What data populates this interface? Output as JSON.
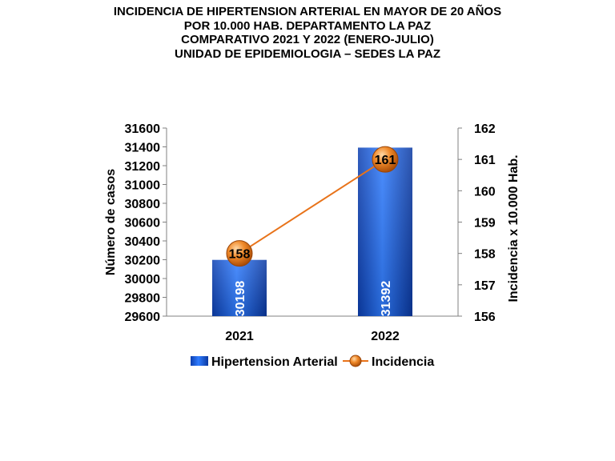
{
  "title_lines": [
    "INCIDENCIA DE HIPERTENSION ARTERIAL EN MAYOR DE 20 AÑOS",
    "POR 10.000 HAB. DEPARTAMENTO LA PAZ",
    "COMPARATIVO 2021 Y 2022 (ENERO-JULIO)",
    "UNIDAD DE EPIDEMIOLOGIA – SEDES LA PAZ"
  ],
  "chart_data": {
    "type": "bar",
    "categories": [
      "2021",
      "2022"
    ],
    "series": [
      {
        "name": "Hipertension Arterial",
        "type": "bar",
        "axis": "left",
        "values": [
          30198,
          31392
        ],
        "color": "#1f5fe0"
      },
      {
        "name": "Incidencia",
        "type": "line",
        "axis": "right",
        "values": [
          158,
          161
        ],
        "color": "#e8731a"
      }
    ],
    "ylabel": "Número de casos",
    "y2label": "Incidencia x 10.000 Hab.",
    "ylim": [
      29600,
      31600
    ],
    "y2lim": [
      156,
      162
    ],
    "yticks": [
      29600,
      29800,
      30000,
      30200,
      30400,
      30600,
      30800,
      31000,
      31200,
      31400,
      31600
    ],
    "y2ticks": [
      156,
      157,
      158,
      159,
      160,
      161,
      162
    ],
    "legend_position": "bottom",
    "grid": false
  }
}
